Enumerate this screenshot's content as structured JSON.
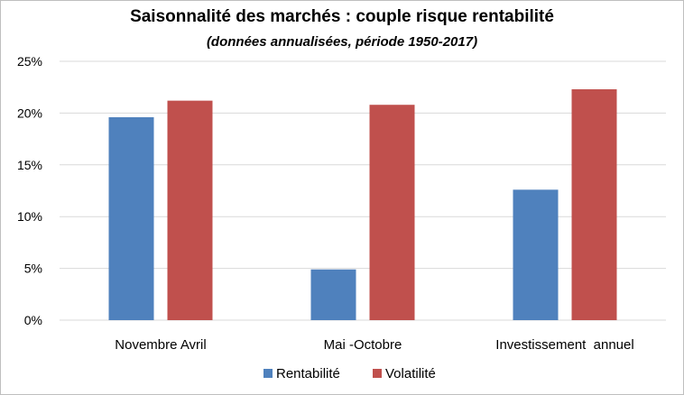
{
  "chart_data": {
    "type": "bar",
    "title": "Saisonnalité des marchés : couple risque rentabilité",
    "subtitle": "(données annualisées, période 1950-2017)",
    "categories": [
      "Novembre Avril",
      "Mai -Octobre",
      "Investissement  annuel"
    ],
    "series": [
      {
        "name": "Rentabilité",
        "color": "#4f81bd",
        "values": [
          19.6,
          4.9,
          12.6
        ]
      },
      {
        "name": "Volatilité",
        "color": "#c0504d",
        "values": [
          21.2,
          20.8,
          22.3
        ]
      }
    ],
    "y_ticks": [
      "0%",
      "5%",
      "10%",
      "15%",
      "20%",
      "25%"
    ],
    "y_tick_values": [
      0,
      5,
      10,
      15,
      20,
      25
    ],
    "ylim": [
      0,
      25
    ],
    "grid": true,
    "legend_position": "bottom"
  }
}
